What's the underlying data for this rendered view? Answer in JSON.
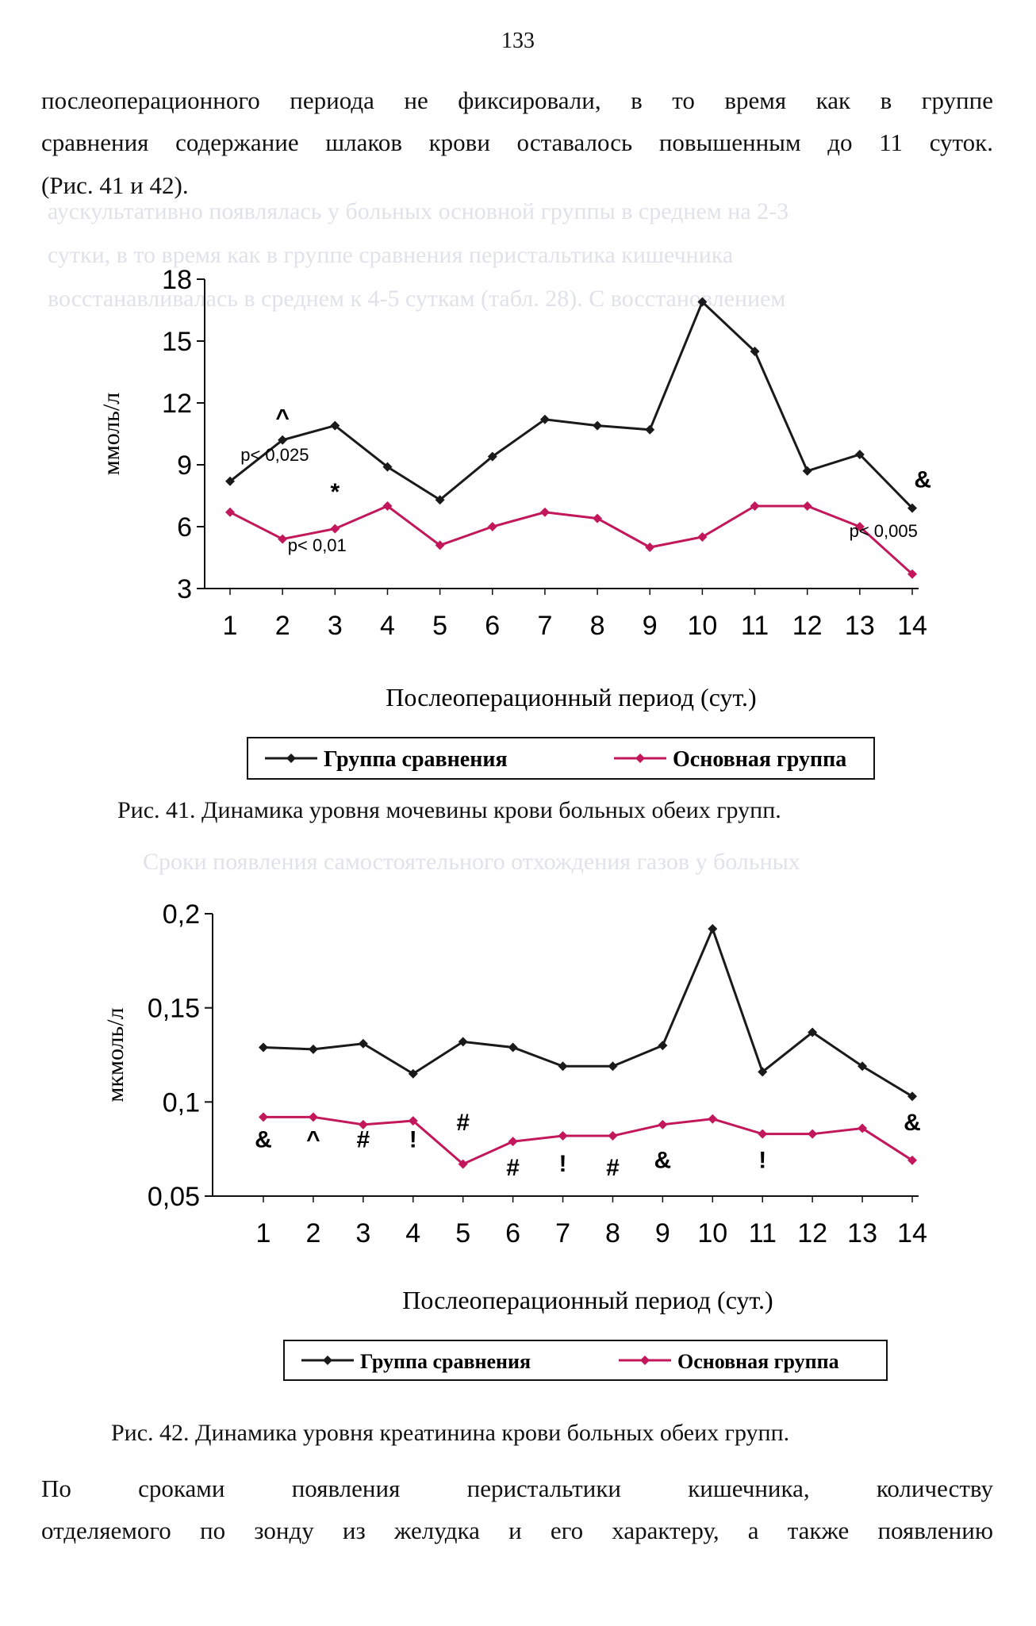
{
  "page_number": "133",
  "intro_lines": [
    "послеоперационного периода не фиксировали, в то время как в группе",
    "сравнения содержание шлаков крови оставалось повышенным до 11 суток.",
    "(Рис. 41 и 42)."
  ],
  "outro_lines": [
    "По сроками появления перистальтики кишечника, количеству",
    "отделяемого по зонду из желудка и его характеру, а также появлению"
  ],
  "chart_data": [
    {
      "type": "line",
      "x": [
        1,
        2,
        3,
        4,
        5,
        6,
        7,
        8,
        9,
        10,
        11,
        12,
        13,
        14
      ],
      "ylabel": "ммоль/л",
      "xlabel": "Послеоперационный период (сут.)",
      "yticks": [
        "18",
        "15",
        "12",
        "9",
        "6",
        "3"
      ],
      "ylim": [
        3,
        18
      ],
      "series": [
        {
          "name": "Группа сравнения",
          "color": "#1a1a1a",
          "marker": "diamond",
          "values": [
            8.2,
            10.2,
            10.9,
            8.9,
            7.3,
            9.4,
            11.2,
            10.9,
            10.7,
            16.9,
            14.5,
            8.7,
            9.5,
            6.9
          ]
        },
        {
          "name": "Основная группа",
          "color": "#c2185b",
          "marker": "diamond",
          "values": [
            6.7,
            5.4,
            5.9,
            7.0,
            5.1,
            6.0,
            6.7,
            6.4,
            5.0,
            5.5,
            7.0,
            7.0,
            6.0,
            3.7
          ]
        }
      ],
      "annotations": [
        {
          "text": "^",
          "x": 2,
          "y": 10.9
        },
        {
          "text": "p< 0,025",
          "x": 1.2,
          "y": 9.2
        },
        {
          "text": "*",
          "x": 3,
          "y": 7.3
        },
        {
          "text": "p< 0,01",
          "x": 2.1,
          "y": 4.8
        },
        {
          "text": "&",
          "x": 14.2,
          "y": 7.9
        },
        {
          "text": "p< 0,005",
          "x": 12.8,
          "y": 5.5
        }
      ],
      "legend": "bottom"
    },
    {
      "type": "line",
      "x": [
        1,
        2,
        3,
        4,
        5,
        6,
        7,
        8,
        9,
        10,
        11,
        12,
        13,
        14
      ],
      "ylabel": "мкмоль/л",
      "xlabel": "Послеоперационный период (сут.)",
      "yticks": [
        "0,2",
        "0,15",
        "0,1",
        "0,05"
      ],
      "ylim": [
        0.05,
        0.2
      ],
      "series": [
        {
          "name": "Группа сравнения",
          "color": "#1a1a1a",
          "marker": "diamond",
          "values": [
            0.129,
            0.128,
            0.131,
            0.115,
            0.132,
            0.129,
            0.119,
            0.119,
            0.13,
            0.192,
            0.116,
            0.137,
            0.119,
            0.103
          ]
        },
        {
          "name": "Основная группа",
          "color": "#c2185b",
          "marker": "diamond",
          "values": [
            0.092,
            0.092,
            0.088,
            0.09,
            0.067,
            0.079,
            0.082,
            0.082,
            0.088,
            0.091,
            0.083,
            0.083,
            0.086,
            0.069
          ]
        }
      ],
      "annotations": [
        {
          "text": "&",
          "x": 1,
          "y": 0.076
        },
        {
          "text": "^",
          "x": 2,
          "y": 0.076
        },
        {
          "text": "#",
          "x": 3,
          "y": 0.076
        },
        {
          "text": "!",
          "x": 4,
          "y": 0.076
        },
        {
          "text": "#",
          "x": 5,
          "y": 0.085
        },
        {
          "text": "#",
          "x": 6,
          "y": 0.061
        },
        {
          "text": "!",
          "x": 7,
          "y": 0.063
        },
        {
          "text": "#",
          "x": 8,
          "y": 0.061
        },
        {
          "text": "&",
          "x": 9,
          "y": 0.065
        },
        {
          "text": "!",
          "x": 11,
          "y": 0.065
        },
        {
          "text": "&",
          "x": 14,
          "y": 0.085
        }
      ],
      "legend": "bottom"
    }
  ],
  "captions": {
    "fig41": "Рис. 41. Динамика уровня мочевины крови больных обеих групп.",
    "fig42": "Рис. 42. Динамика уровня креатинина крови больных обеих групп."
  }
}
